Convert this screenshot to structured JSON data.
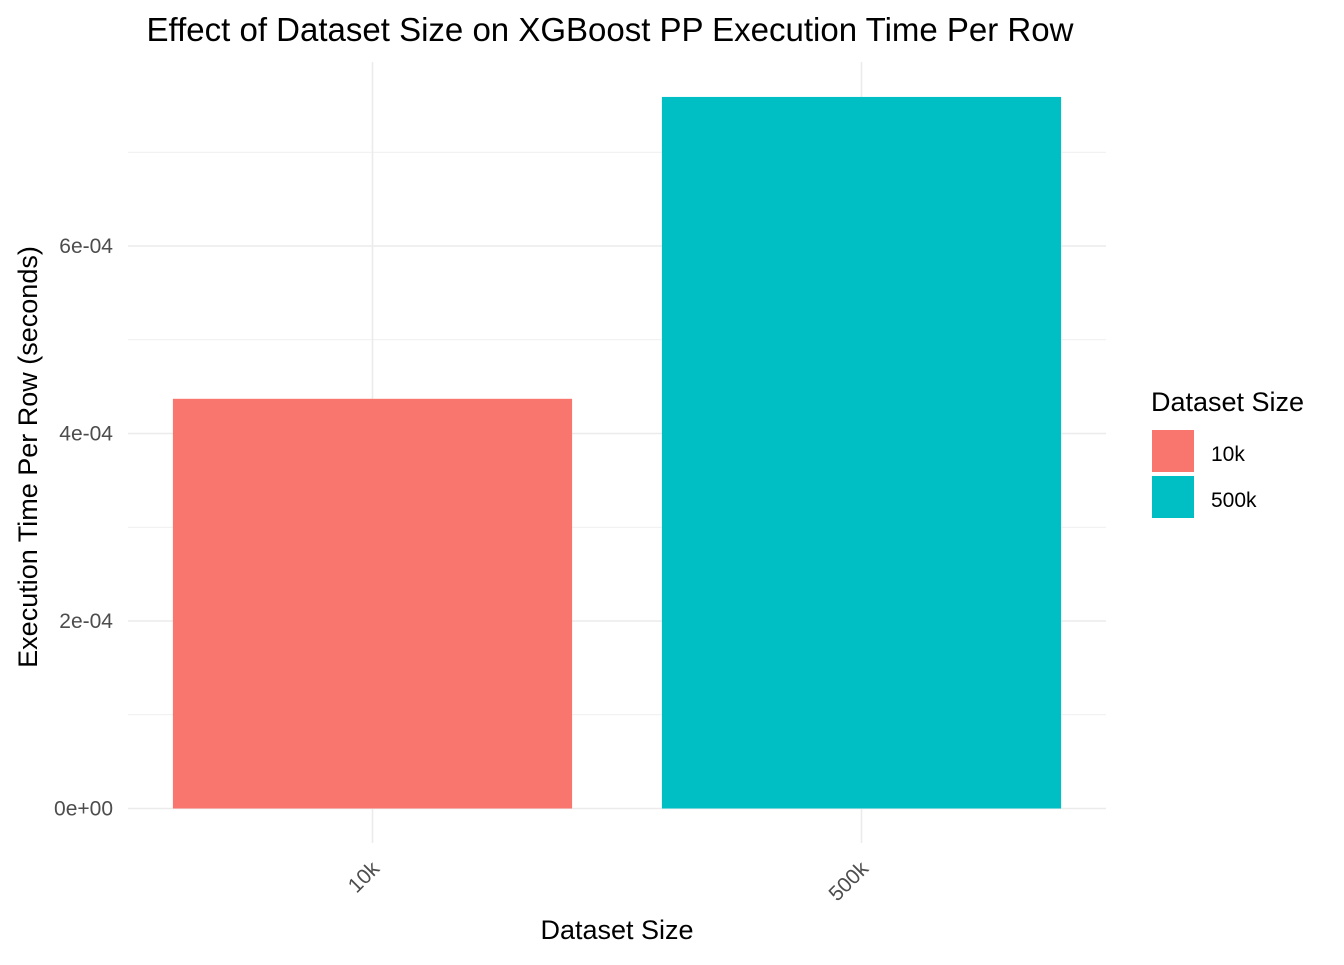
{
  "chart_data": {
    "type": "bar",
    "title": "Effect of Dataset Size on XGBoost PP Execution Time Per Row",
    "xlabel": "Dataset Size",
    "ylabel": "Execution Time Per Row (seconds)",
    "categories": [
      "10k",
      "500k"
    ],
    "values": [
      0.000437,
      0.000759
    ],
    "ylim": [
      0,
      0.00078
    ],
    "yticks": [
      0,
      0.0002,
      0.0004,
      0.0006
    ],
    "ytick_labels": [
      "0e+00",
      "2e-04",
      "4e-04",
      "6e-04"
    ],
    "grid": true,
    "legend": {
      "title": "Dataset Size",
      "placement": "right",
      "entries": [
        "10k",
        "500k"
      ]
    },
    "colors": [
      "#F8766D",
      "#00BFC4"
    ]
  }
}
